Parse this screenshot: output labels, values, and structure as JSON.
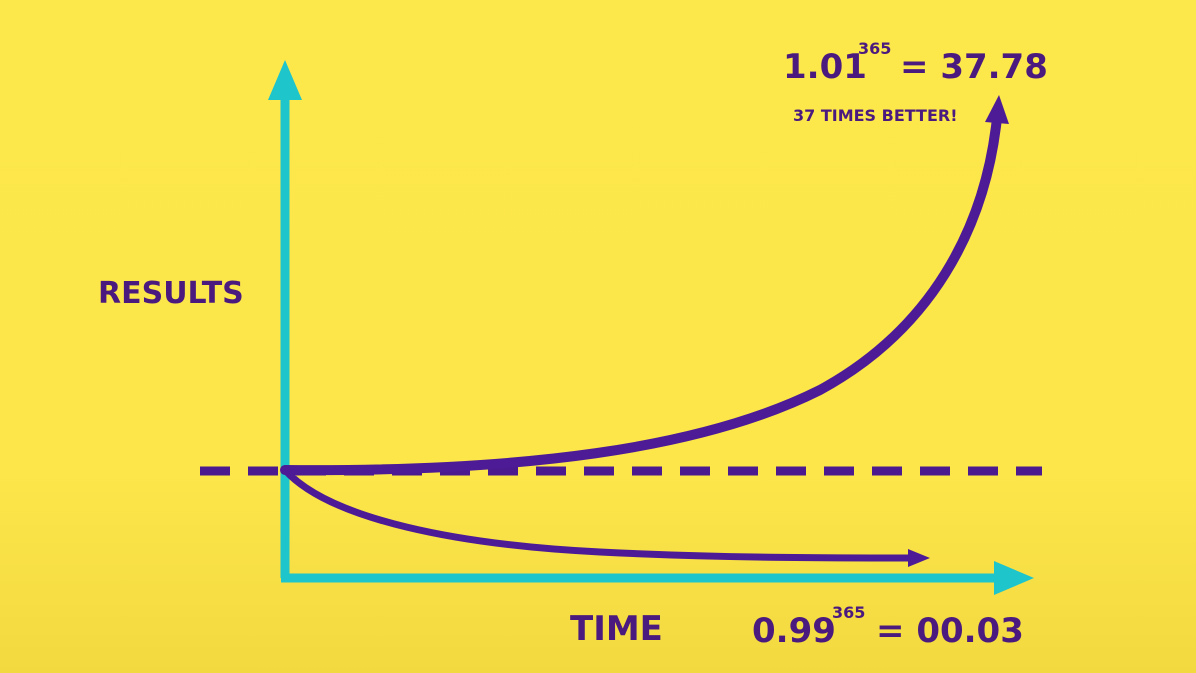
{
  "axes": {
    "y_label": "RESULTS",
    "x_label": "TIME"
  },
  "top_formula": {
    "base": "1.01",
    "exponent": "365",
    "result": "= 37.78",
    "note": "37 TIMES BETTER!"
  },
  "bottom_formula": {
    "base": "0.99",
    "exponent": "365",
    "result": "= 00.03"
  }
}
